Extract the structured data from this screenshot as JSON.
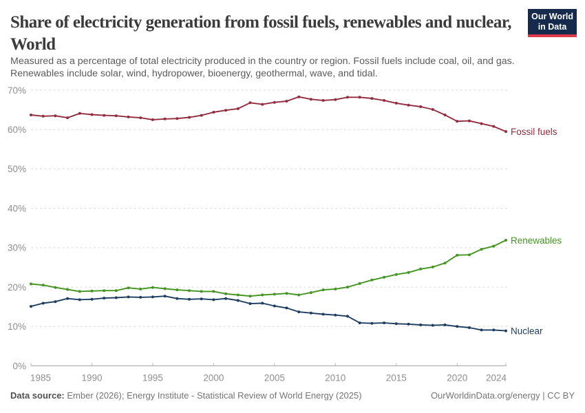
{
  "title": "Share of electricity generation from fossil fuels, renewables and nuclear, World",
  "subtitle": "Measured as a percentage of total electricity produced in the country or region. Fossil fuels include coal, oil, and gas. Renewables include solar, wind, hydropower, bioenergy, geothermal, wave, and tidal.",
  "logo": {
    "line1": "Our World",
    "line2": "in Data",
    "bg_color": "#152a4d",
    "bar_color": "#e0394b"
  },
  "footer": {
    "source_label": "Data source:",
    "source_text": " Ember (2026); Energy Institute - Statistical Review of World Energy (2025)",
    "right_text": "OurWorldinData.org/energy | CC BY"
  },
  "chart_data": {
    "type": "line",
    "title": "Share of electricity generation from fossil fuels, renewables and nuclear, World",
    "x": [
      1985,
      1986,
      1987,
      1988,
      1989,
      1990,
      1991,
      1992,
      1993,
      1994,
      1995,
      1996,
      1997,
      1998,
      1999,
      2000,
      2001,
      2002,
      2003,
      2004,
      2005,
      2006,
      2007,
      2008,
      2009,
      2010,
      2011,
      2012,
      2013,
      2014,
      2015,
      2016,
      2017,
      2018,
      2019,
      2020,
      2021,
      2022,
      2023,
      2024
    ],
    "series": [
      {
        "name": "Fossil fuels",
        "color": "#932c3e",
        "values": [
          63.7,
          63.4,
          63.5,
          63.0,
          64.1,
          63.8,
          63.6,
          63.5,
          63.2,
          63.0,
          62.5,
          62.7,
          62.8,
          63.1,
          63.6,
          64.4,
          64.9,
          65.3,
          66.8,
          66.4,
          66.9,
          67.2,
          68.3,
          67.7,
          67.4,
          67.6,
          68.2,
          68.2,
          67.9,
          67.4,
          66.7,
          66.2,
          65.8,
          65.1,
          63.7,
          62.1,
          62.2,
          61.5,
          60.8,
          59.5
        ]
      },
      {
        "name": "Renewables",
        "color": "#449422",
        "values": [
          20.8,
          20.5,
          19.9,
          19.4,
          18.9,
          19.0,
          19.1,
          19.1,
          19.8,
          19.5,
          19.9,
          19.6,
          19.3,
          19.1,
          18.9,
          18.9,
          18.3,
          18.0,
          17.7,
          18.0,
          18.2,
          18.4,
          18.0,
          18.6,
          19.3,
          19.5,
          20.0,
          20.9,
          21.8,
          22.5,
          23.2,
          23.7,
          24.6,
          25.1,
          26.1,
          28.1,
          28.2,
          29.6,
          30.4,
          31.9
        ]
      },
      {
        "name": "Nuclear",
        "color": "#1d3d63",
        "values": [
          15.1,
          15.9,
          16.3,
          17.1,
          16.8,
          16.9,
          17.2,
          17.3,
          17.5,
          17.4,
          17.5,
          17.7,
          17.1,
          16.9,
          17.0,
          16.8,
          17.1,
          16.6,
          15.8,
          15.9,
          15.2,
          14.7,
          13.7,
          13.4,
          13.1,
          12.9,
          12.6,
          10.9,
          10.8,
          10.9,
          10.7,
          10.6,
          10.4,
          10.3,
          10.4,
          10.0,
          9.7,
          9.1,
          9.1,
          8.9
        ]
      }
    ],
    "ylim": [
      0,
      70
    ],
    "yticks": [
      0,
      10,
      20,
      30,
      40,
      50,
      60,
      70
    ],
    "ytick_suffix": "%",
    "xticks": [
      1985,
      1990,
      1995,
      2000,
      2005,
      2010,
      2015,
      2020,
      2024
    ],
    "grid": "horizontal-dashed",
    "legend_position": "end-of-line-labels"
  }
}
